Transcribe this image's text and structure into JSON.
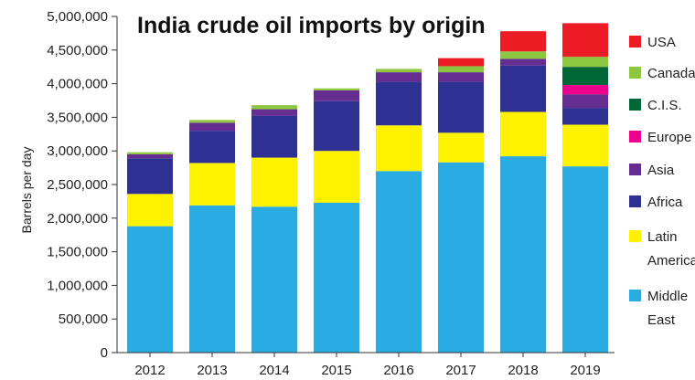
{
  "chart_data": {
    "type": "bar",
    "stacked": true,
    "title": "India crude oil imports by origin",
    "ylabel": "Barrels per day",
    "xlabel": "",
    "ylim": [
      0,
      5000000
    ],
    "yticks": [
      "0",
      "500,000",
      "1,000,000",
      "1,500,000",
      "2,000,000",
      "2,500,000",
      "3,000,000",
      "3,500,000",
      "4,000,000",
      "4,500,000",
      "5,000,000"
    ],
    "categories": [
      "2012",
      "2013",
      "2014",
      "2015",
      "2016",
      "2017",
      "2018",
      "2019"
    ],
    "legend_position": "right",
    "series": [
      {
        "name": "Middle East",
        "legend_lines": [
          "Middle",
          "East"
        ],
        "color": "#29abe2",
        "values": [
          1880000,
          2190000,
          2170000,
          2230000,
          2700000,
          2830000,
          2920000,
          2770000
        ]
      },
      {
        "name": "Latin America",
        "legend_lines": [
          "Latin",
          "America"
        ],
        "color": "#fff200",
        "values": [
          480000,
          630000,
          730000,
          770000,
          680000,
          440000,
          660000,
          620000
        ]
      },
      {
        "name": "Africa",
        "legend_lines": [
          "Africa"
        ],
        "color": "#2e3192",
        "values": [
          530000,
          480000,
          620000,
          740000,
          650000,
          760000,
          690000,
          250000
        ]
      },
      {
        "name": "Asia",
        "legend_lines": [
          "Asia"
        ],
        "color": "#662d91",
        "values": [
          60000,
          120000,
          100000,
          160000,
          140000,
          140000,
          100000,
          200000
        ]
      },
      {
        "name": "Europe",
        "legend_lines": [
          "Europe"
        ],
        "color": "#ec008c",
        "values": [
          0,
          0,
          0,
          0,
          0,
          0,
          0,
          140000
        ]
      },
      {
        "name": "C.I.S.",
        "legend_lines": [
          "C.I.S."
        ],
        "color": "#006837",
        "values": [
          0,
          0,
          0,
          0,
          0,
          0,
          0,
          270000
        ]
      },
      {
        "name": "Canada",
        "legend_lines": [
          "Canada"
        ],
        "color": "#8dc63f",
        "values": [
          30000,
          40000,
          60000,
          30000,
          50000,
          90000,
          110000,
          150000
        ]
      },
      {
        "name": "USA",
        "legend_lines": [
          "USA"
        ],
        "color": "#ed1c24",
        "values": [
          0,
          0,
          0,
          0,
          0,
          120000,
          300000,
          500000
        ]
      }
    ]
  }
}
